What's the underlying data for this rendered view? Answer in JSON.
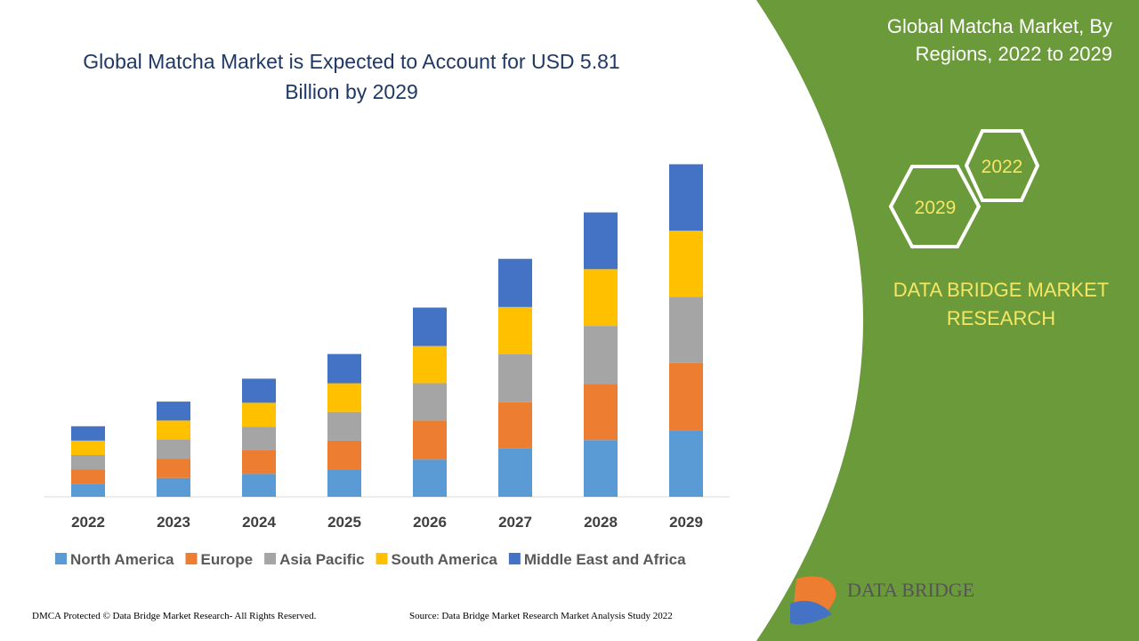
{
  "chart_data": {
    "type": "stacked-bar",
    "title": "Global Matcha Market is Expected to Account for USD 5.81 Billion by 2029",
    "categories": [
      "2022",
      "2023",
      "2024",
      "2025",
      "2026",
      "2027",
      "2028",
      "2029"
    ],
    "series": [
      {
        "name": "North America",
        "color": "#5b9bd5",
        "values": [
          0.23,
          0.33,
          0.4,
          0.48,
          0.65,
          0.84,
          0.99,
          1.15
        ]
      },
      {
        "name": "Europe",
        "color": "#ed7d31",
        "values": [
          0.25,
          0.33,
          0.42,
          0.5,
          0.68,
          0.81,
          0.98,
          1.18
        ]
      },
      {
        "name": "Asia Pacific",
        "color": "#a5a5a5",
        "values": [
          0.25,
          0.34,
          0.4,
          0.5,
          0.65,
          0.84,
          1.01,
          1.16
        ]
      },
      {
        "name": "South America",
        "color": "#ffc000",
        "values": [
          0.25,
          0.33,
          0.42,
          0.5,
          0.65,
          0.82,
          0.99,
          1.15
        ]
      },
      {
        "name": "Middle East and Africa",
        "color": "#4472c4",
        "values": [
          0.25,
          0.33,
          0.42,
          0.51,
          0.67,
          0.84,
          0.99,
          1.16
        ]
      }
    ]
  },
  "side_panel": {
    "title": "Global Matcha Market, By Regions, 2022 to 2029",
    "hex_labels": [
      "2022",
      "2029"
    ],
    "brand": "DATA BRIDGE MARKET RESEARCH"
  },
  "logo_text": "DATA BRIDGE",
  "footer": {
    "copyright": "DMCA Protected © Data Bridge Market Research- All Rights Reserved.",
    "source": "Source: Data Bridge Market Research Market Analysis Study 2022"
  }
}
